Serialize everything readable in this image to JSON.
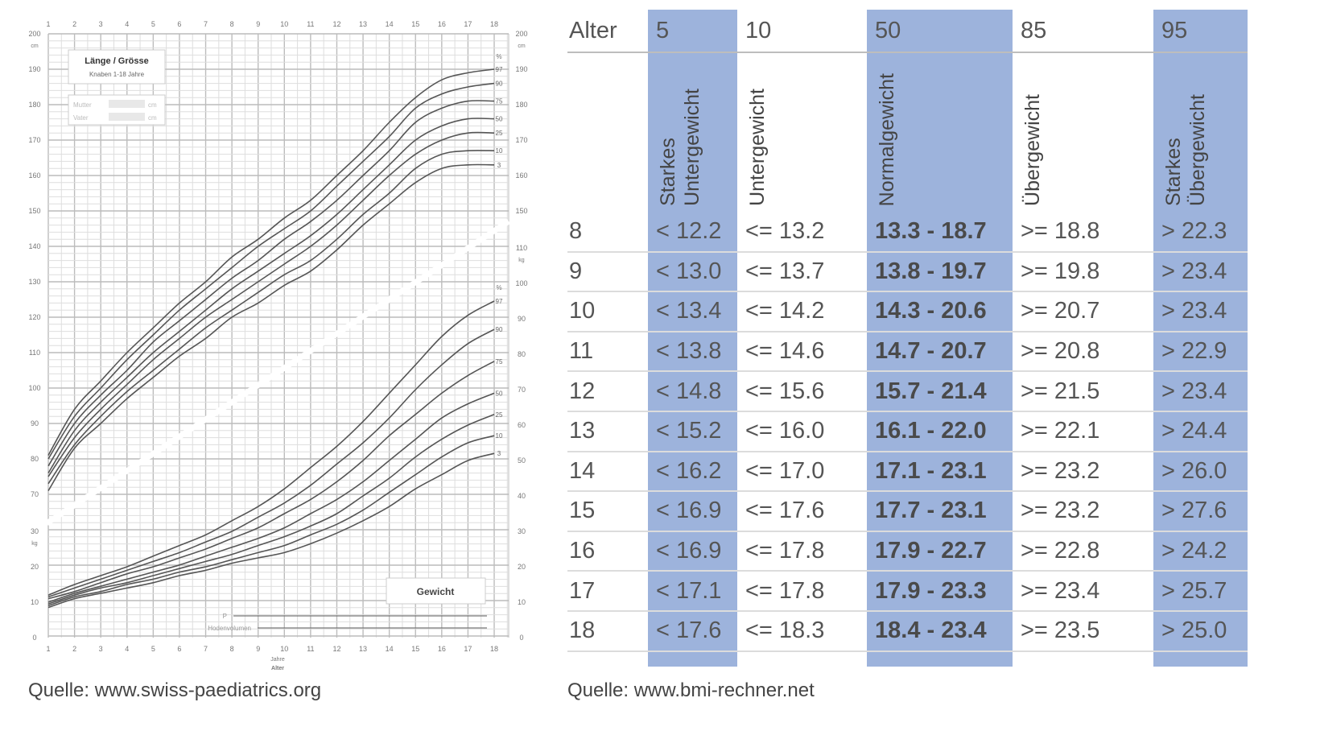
{
  "chart_data": {
    "type": "line",
    "title": "Länge / Grösse",
    "subtitle": "Knaben 1-18 Jahre",
    "parent_fields": [
      {
        "label": "Mutter",
        "unit": "cm"
      },
      {
        "label": "Vater",
        "unit": "cm"
      }
    ],
    "weight_title": "Gewicht",
    "bottom_rows": [
      "P",
      "Hodenvolumen"
    ],
    "xlabel": "Jahre",
    "xlabel2": "Alter",
    "x": [
      1,
      2,
      3,
      4,
      5,
      6,
      7,
      8,
      9,
      10,
      11,
      12,
      13,
      14,
      15,
      16,
      17,
      18
    ],
    "xlim": [
      1,
      18
    ],
    "grid": true,
    "left_axis_ticks": [
      "200",
      "190",
      "180",
      "170",
      "160",
      "150",
      "140",
      "130",
      "120",
      "110",
      "100",
      "90",
      "80",
      "70",
      "30",
      "20",
      "10",
      "0"
    ],
    "left_units": {
      "height": "cm",
      "weight": "kg"
    },
    "right_axis_ticks": [
      "200",
      "190",
      "180",
      "170",
      "160",
      "150",
      "110",
      "100",
      "90",
      "80",
      "70",
      "60",
      "50",
      "40",
      "30",
      "20",
      "10",
      "0"
    ],
    "right_units": {
      "height": "cm",
      "weight": "kg"
    },
    "percent_symbol": "%",
    "height_ylabel": "cm",
    "height_series": [
      {
        "name": "97",
        "values": [
          81,
          94,
          102,
          110,
          117,
          124,
          130,
          137,
          142,
          148,
          153,
          160,
          167,
          175,
          182,
          187,
          189,
          190
        ]
      },
      {
        "name": "90",
        "values": [
          80,
          92,
          100,
          108,
          115,
          122,
          128,
          134,
          140,
          145,
          150,
          157,
          164,
          171,
          179,
          183,
          185,
          186
        ]
      },
      {
        "name": "75",
        "values": [
          78,
          90,
          98,
          105,
          113,
          119,
          125,
          131,
          136,
          142,
          147,
          153,
          160,
          167,
          175,
          179,
          181,
          181
        ]
      },
      {
        "name": "50",
        "values": [
          76,
          88,
          96,
          103,
          110,
          116,
          122,
          128,
          133,
          138,
          143,
          149,
          156,
          163,
          170,
          174,
          176,
          176
        ]
      },
      {
        "name": "25",
        "values": [
          75,
          86,
          94,
          101,
          108,
          114,
          120,
          125,
          130,
          135,
          140,
          146,
          153,
          160,
          166,
          170,
          172,
          172
        ]
      },
      {
        "name": "10",
        "values": [
          73,
          84,
          92,
          99,
          105,
          111,
          117,
          122,
          127,
          132,
          136,
          142,
          149,
          155,
          162,
          166,
          167,
          167
        ]
      },
      {
        "name": "3",
        "values": [
          71,
          83,
          90,
          97,
          103,
          109,
          114,
          120,
          124,
          129,
          133,
          139,
          146,
          152,
          158,
          162,
          163,
          163
        ]
      }
    ],
    "weight_ylabel": "kg",
    "weight_series": [
      {
        "name": "97",
        "values": [
          12,
          15,
          17.5,
          20,
          23,
          26,
          29,
          33,
          37,
          42,
          48,
          54,
          61,
          69,
          77,
          85,
          91,
          95
        ]
      },
      {
        "name": "90",
        "values": [
          11.5,
          14,
          16.5,
          19,
          21.5,
          24,
          27,
          30,
          34,
          38,
          43,
          49,
          55,
          62,
          70,
          77,
          83,
          87
        ]
      },
      {
        "name": "75",
        "values": [
          11,
          13,
          15.5,
          18,
          20,
          22.5,
          25,
          28,
          31,
          35,
          39,
          44,
          50,
          57,
          63,
          69,
          74,
          78
        ]
      },
      {
        "name": "50",
        "values": [
          10,
          12.5,
          14.5,
          16.5,
          18.5,
          20.5,
          23,
          25.5,
          28,
          31,
          35,
          39,
          44,
          50,
          56,
          62,
          66,
          69
        ]
      },
      {
        "name": "25",
        "values": [
          9.5,
          12,
          14,
          15.5,
          17.5,
          19.5,
          21.5,
          23.5,
          26,
          28.5,
          31.5,
          35,
          40,
          45,
          51,
          56,
          60,
          63
        ]
      },
      {
        "name": "10",
        "values": [
          9,
          11.5,
          13,
          15,
          16.5,
          18.5,
          20,
          22,
          24,
          26,
          29,
          32,
          36,
          41,
          46,
          51,
          55,
          57
        ]
      },
      {
        "name": "3",
        "values": [
          8.5,
          11,
          12.5,
          14,
          15.5,
          17.5,
          19,
          21,
          22.5,
          24,
          26.5,
          29.5,
          33,
          37,
          42,
          46,
          50,
          52
        ]
      }
    ],
    "source": "Quelle: www.swiss-paediatrics.org"
  },
  "bmi_table": {
    "header": [
      "Alter",
      "5",
      "10",
      "50",
      "85",
      "95"
    ],
    "categories": [
      "Starkes Untergewicht",
      "Untergewicht",
      "Normalgewicht",
      "Übergewicht",
      "Starkes Übergewicht"
    ],
    "category_lines": [
      [
        "Starkes",
        "Untergewicht"
      ],
      [
        "Untergewicht"
      ],
      [
        "Normalgewicht"
      ],
      [
        "Übergewicht"
      ],
      [
        "Starkes",
        "Übergewicht"
      ]
    ],
    "rows": [
      [
        "8",
        "< 12.2",
        "<= 13.2",
        "13.3 - 18.7",
        ">= 18.8",
        "> 22.3"
      ],
      [
        "9",
        "< 13.0",
        "<= 13.7",
        "13.8 - 19.7",
        ">= 19.8",
        "> 23.4"
      ],
      [
        "10",
        "< 13.4",
        "<= 14.2",
        "14.3 - 20.6",
        ">= 20.7",
        "> 23.4"
      ],
      [
        "11",
        "< 13.8",
        "<= 14.6",
        "14.7 - 20.7",
        ">= 20.8",
        "> 22.9"
      ],
      [
        "12",
        "< 14.8",
        "<= 15.6",
        "15.7 - 21.4",
        ">= 21.5",
        "> 23.4"
      ],
      [
        "13",
        "< 15.2",
        "<= 16.0",
        "16.1 - 22.0",
        ">= 22.1",
        "> 24.4"
      ],
      [
        "14",
        "< 16.2",
        "<= 17.0",
        "17.1 - 23.1",
        ">= 23.2",
        "> 26.0"
      ],
      [
        "15",
        "< 16.9",
        "<= 17.6",
        "17.7 - 23.1",
        ">= 23.2",
        "> 27.6"
      ],
      [
        "16",
        "< 16.9",
        "<= 17.8",
        "17.9 - 22.7",
        ">= 22.8",
        "> 24.2"
      ],
      [
        "17",
        "< 17.1",
        "<= 17.8",
        "17.9 - 23.3",
        ">= 23.4",
        "> 25.7"
      ],
      [
        "18",
        "< 17.6",
        "<= 18.3",
        "18.4 - 23.4",
        ">= 23.5",
        "> 25.0"
      ]
    ],
    "highlight_color": "#9db3dc",
    "source": "Quelle: www.bmi-rechner.net"
  }
}
